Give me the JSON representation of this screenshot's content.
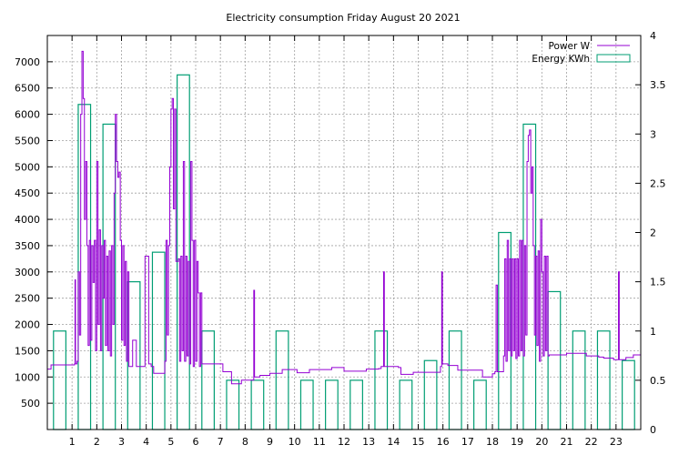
{
  "chart_data": {
    "type": "bar",
    "title": "Electricity consumption Friday August 20 2021",
    "xlabel": "",
    "ylabel": "",
    "xlim": [
      0,
      24
    ],
    "xticks": [
      1,
      2,
      3,
      4,
      5,
      6,
      7,
      8,
      9,
      10,
      11,
      12,
      13,
      14,
      15,
      16,
      17,
      18,
      19,
      20,
      21,
      22,
      23
    ],
    "ylim_left": [
      0,
      7500
    ],
    "yticks_left": [
      500,
      1000,
      1500,
      2000,
      2500,
      3000,
      3500,
      4000,
      4500,
      5000,
      5500,
      6000,
      6500,
      7000
    ],
    "ylim_right": [
      0,
      4
    ],
    "yticks_right": [
      0,
      0.5,
      1,
      1.5,
      2,
      2.5,
      3,
      3.5,
      4
    ],
    "grid": true,
    "legend_position": "top-right",
    "series": [
      {
        "name": "Energy KWh",
        "type": "bar",
        "axis": "right",
        "color": "#009e73",
        "x": [
          0,
          1,
          2,
          3,
          4,
          5,
          6,
          7,
          8,
          9,
          10,
          11,
          12,
          13,
          14,
          15,
          16,
          17,
          18,
          19,
          20,
          21,
          22,
          23
        ],
        "values": [
          1.0,
          3.3,
          3.1,
          1.5,
          1.8,
          3.6,
          1.0,
          0.5,
          0.5,
          1.0,
          0.5,
          0.5,
          0.5,
          1.0,
          0.5,
          0.7,
          1.0,
          0.5,
          2.0,
          3.1,
          1.4,
          1.0,
          1.0,
          0.7
        ]
      },
      {
        "name": "Power W",
        "type": "line",
        "axis": "left",
        "color": "#9400d3",
        "points": [
          [
            0.0,
            1150
          ],
          [
            0.15,
            1230
          ],
          [
            0.5,
            1230
          ],
          [
            1.0,
            1230
          ],
          [
            1.1,
            1250
          ],
          [
            1.12,
            2850
          ],
          [
            1.14,
            1250
          ],
          [
            1.2,
            1300
          ],
          [
            1.25,
            3000
          ],
          [
            1.3,
            1800
          ],
          [
            1.35,
            6000
          ],
          [
            1.4,
            7200
          ],
          [
            1.45,
            6300
          ],
          [
            1.5,
            4000
          ],
          [
            1.55,
            5100
          ],
          [
            1.6,
            3500
          ],
          [
            1.65,
            1600
          ],
          [
            1.7,
            3600
          ],
          [
            1.75,
            1700
          ],
          [
            1.8,
            3500
          ],
          [
            1.85,
            2800
          ],
          [
            1.9,
            3600
          ],
          [
            1.95,
            1500
          ],
          [
            2.0,
            5100
          ],
          [
            2.05,
            2000
          ],
          [
            2.1,
            3800
          ],
          [
            2.15,
            1500
          ],
          [
            2.2,
            3500
          ],
          [
            2.25,
            2500
          ],
          [
            2.3,
            3600
          ],
          [
            2.35,
            1600
          ],
          [
            2.4,
            3300
          ],
          [
            2.45,
            1500
          ],
          [
            2.5,
            3400
          ],
          [
            2.55,
            1400
          ],
          [
            2.6,
            3500
          ],
          [
            2.65,
            2000
          ],
          [
            2.7,
            4500
          ],
          [
            2.75,
            6000
          ],
          [
            2.8,
            5100
          ],
          [
            2.85,
            4800
          ],
          [
            2.9,
            4900
          ],
          [
            2.95,
            3600
          ],
          [
            3.0,
            1700
          ],
          [
            3.05,
            3500
          ],
          [
            3.1,
            1600
          ],
          [
            3.15,
            3200
          ],
          [
            3.2,
            1300
          ],
          [
            3.25,
            3000
          ],
          [
            3.3,
            1200
          ],
          [
            3.4,
            1200
          ],
          [
            3.45,
            1700
          ],
          [
            3.55,
            1700
          ],
          [
            3.6,
            1200
          ],
          [
            3.9,
            1200
          ],
          [
            3.95,
            3300
          ],
          [
            4.05,
            3300
          ],
          [
            4.1,
            1250
          ],
          [
            4.2,
            1200
          ],
          [
            4.3,
            1070
          ],
          [
            4.7,
            1070
          ],
          [
            4.75,
            1300
          ],
          [
            4.8,
            3600
          ],
          [
            4.85,
            1800
          ],
          [
            4.9,
            3500
          ],
          [
            4.95,
            5000
          ],
          [
            5.0,
            6100
          ],
          [
            5.05,
            6300
          ],
          [
            5.1,
            4200
          ],
          [
            5.15,
            6100
          ],
          [
            5.2,
            3200
          ],
          [
            5.3,
            3250
          ],
          [
            5.35,
            1300
          ],
          [
            5.4,
            3300
          ],
          [
            5.45,
            1500
          ],
          [
            5.5,
            5100
          ],
          [
            5.55,
            1300
          ],
          [
            5.6,
            3300
          ],
          [
            5.65,
            1400
          ],
          [
            5.7,
            3200
          ],
          [
            5.75,
            1250
          ],
          [
            5.8,
            5100
          ],
          [
            5.85,
            3600
          ],
          [
            5.9,
            1200
          ],
          [
            5.95,
            3600
          ],
          [
            6.0,
            1300
          ],
          [
            6.05,
            3200
          ],
          [
            6.1,
            2600
          ],
          [
            6.15,
            1200
          ],
          [
            6.2,
            2600
          ],
          [
            6.25,
            1250
          ],
          [
            7.0,
            1250
          ],
          [
            7.1,
            1100
          ],
          [
            7.4,
            1100
          ],
          [
            7.45,
            870
          ],
          [
            7.8,
            870
          ],
          [
            7.85,
            940
          ],
          [
            8.3,
            940
          ],
          [
            8.35,
            2650
          ],
          [
            8.38,
            1000
          ],
          [
            8.6,
            1030
          ],
          [
            9.0,
            1070
          ],
          [
            9.4,
            1070
          ],
          [
            9.5,
            1140
          ],
          [
            10.0,
            1140
          ],
          [
            10.1,
            1080
          ],
          [
            10.5,
            1080
          ],
          [
            10.6,
            1140
          ],
          [
            11.5,
            1180
          ],
          [
            11.9,
            1180
          ],
          [
            12.0,
            1110
          ],
          [
            12.8,
            1110
          ],
          [
            12.9,
            1150
          ],
          [
            13.4,
            1160
          ],
          [
            13.5,
            1200
          ],
          [
            13.6,
            3000
          ],
          [
            13.63,
            1200
          ],
          [
            14.2,
            1180
          ],
          [
            14.3,
            1050
          ],
          [
            14.8,
            1090
          ],
          [
            15.8,
            1090
          ],
          [
            15.9,
            1200
          ],
          [
            15.95,
            3000
          ],
          [
            15.98,
            1250
          ],
          [
            16.2,
            1220
          ],
          [
            16.5,
            1220
          ],
          [
            16.6,
            1130
          ],
          [
            17.5,
            1130
          ],
          [
            17.6,
            1000
          ],
          [
            17.9,
            1000
          ],
          [
            18.0,
            1060
          ],
          [
            18.1,
            1100
          ],
          [
            18.15,
            2750
          ],
          [
            18.2,
            1100
          ],
          [
            18.4,
            1100
          ],
          [
            18.45,
            1400
          ],
          [
            18.5,
            3250
          ],
          [
            18.55,
            1300
          ],
          [
            18.6,
            3600
          ],
          [
            18.65,
            1500
          ],
          [
            18.7,
            3250
          ],
          [
            18.75,
            1400
          ],
          [
            18.8,
            3250
          ],
          [
            18.85,
            1500
          ],
          [
            18.9,
            3250
          ],
          [
            18.95,
            1350
          ],
          [
            19.0,
            3250
          ],
          [
            19.05,
            1400
          ],
          [
            19.1,
            3600
          ],
          [
            19.15,
            1500
          ],
          [
            19.2,
            3600
          ],
          [
            19.25,
            1400
          ],
          [
            19.3,
            3500
          ],
          [
            19.35,
            1800
          ],
          [
            19.4,
            5100
          ],
          [
            19.45,
            5600
          ],
          [
            19.5,
            5700
          ],
          [
            19.55,
            4500
          ],
          [
            19.6,
            5000
          ],
          [
            19.65,
            3500
          ],
          [
            19.7,
            1800
          ],
          [
            19.75,
            3300
          ],
          [
            19.8,
            1600
          ],
          [
            19.85,
            3400
          ],
          [
            19.9,
            1300
          ],
          [
            19.95,
            4000
          ],
          [
            20.0,
            3000
          ],
          [
            20.05,
            1400
          ],
          [
            20.1,
            3300
          ],
          [
            20.15,
            1500
          ],
          [
            20.2,
            3300
          ],
          [
            20.25,
            1400
          ],
          [
            20.3,
            1420
          ],
          [
            20.5,
            1420
          ],
          [
            21.0,
            1450
          ],
          [
            21.5,
            1450
          ],
          [
            21.8,
            1400
          ],
          [
            22.3,
            1380
          ],
          [
            22.5,
            1360
          ],
          [
            22.9,
            1330
          ],
          [
            23.0,
            1330
          ],
          [
            23.1,
            3000
          ],
          [
            23.13,
            1330
          ],
          [
            23.2,
            1330
          ],
          [
            23.4,
            1370
          ],
          [
            23.7,
            1420
          ],
          [
            24.0,
            1440
          ]
        ]
      }
    ]
  }
}
